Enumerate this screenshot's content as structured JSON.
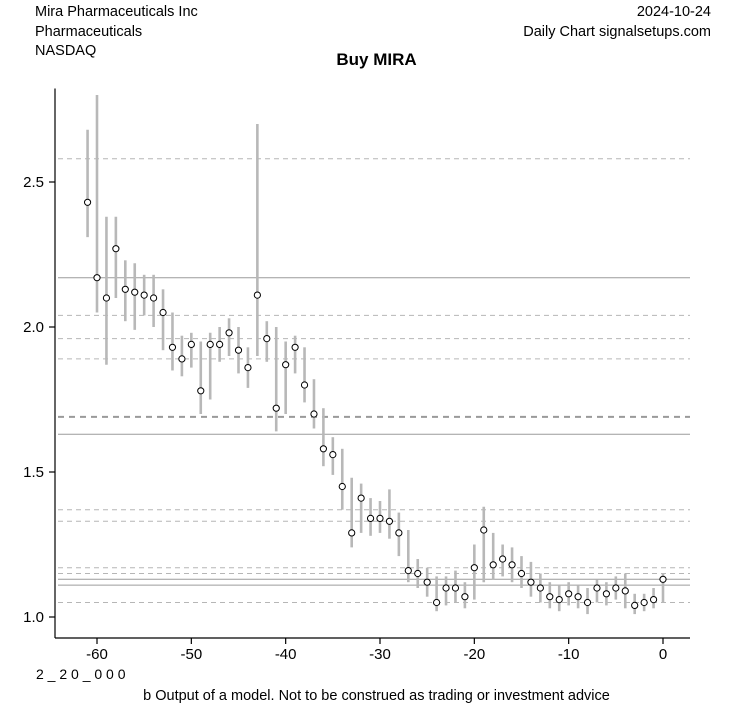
{
  "header": {
    "company": "Mira Pharmaceuticals Inc",
    "sector": "Pharmaceuticals",
    "exchange": "NASDAQ",
    "date": "2024-10-24",
    "source": "Daily Chart signalsetups.com"
  },
  "title": "Buy MIRA",
  "footer": {
    "code": "2 _ 2 0 _ 0 0 0",
    "disclaimer": "b Output of a model. Not to be construed as trading or investment advice"
  },
  "chart_data": {
    "type": "scatter",
    "title": "Buy MIRA",
    "xlabel": "",
    "ylabel": "",
    "xlim": [
      -62,
      1
    ],
    "ylim": [
      0.97,
      2.85
    ],
    "x_ticks": [
      -60,
      -50,
      -40,
      -30,
      -20,
      -10,
      0
    ],
    "y_ticks": [
      1.0,
      1.5,
      2.0,
      2.5
    ],
    "grid": false,
    "legend": "none",
    "colors": {
      "range_bar": "#b8b8b8",
      "dashed_line": "#b6b6b6",
      "dashed_bold_line": "#9a9a9a",
      "solid_line": "#9c9c9c",
      "marker_fill": "#ffffff",
      "marker_stroke": "#000000",
      "axis": "#000000"
    },
    "levels": {
      "solid": [
        2.17,
        1.63,
        1.13,
        1.11
      ],
      "dashed": [
        2.58,
        2.04,
        1.96,
        1.89,
        1.37,
        1.33,
        1.17,
        1.15,
        1.05
      ],
      "dashed_bold": [
        1.69
      ]
    },
    "points": [
      {
        "x": -61,
        "low": 2.31,
        "close": 2.43,
        "high": 2.68
      },
      {
        "x": -60,
        "low": 2.05,
        "close": 2.17,
        "high": 2.8
      },
      {
        "x": -59,
        "low": 1.87,
        "close": 2.1,
        "high": 2.38
      },
      {
        "x": -58,
        "low": 2.1,
        "close": 2.27,
        "high": 2.38
      },
      {
        "x": -57,
        "low": 2.02,
        "close": 2.13,
        "high": 2.23
      },
      {
        "x": -56,
        "low": 1.99,
        "close": 2.12,
        "high": 2.22
      },
      {
        "x": -55,
        "low": 2.04,
        "close": 2.11,
        "high": 2.18
      },
      {
        "x": -54,
        "low": 2.0,
        "close": 2.1,
        "high": 2.18
      },
      {
        "x": -53,
        "low": 1.92,
        "close": 2.05,
        "high": 2.13
      },
      {
        "x": -52,
        "low": 1.85,
        "close": 1.93,
        "high": 2.05
      },
      {
        "x": -51,
        "low": 1.83,
        "close": 1.89,
        "high": 1.97
      },
      {
        "x": -50,
        "low": 1.86,
        "close": 1.94,
        "high": 1.98
      },
      {
        "x": -49,
        "low": 1.7,
        "close": 1.78,
        "high": 1.95
      },
      {
        "x": -48,
        "low": 1.75,
        "close": 1.94,
        "high": 1.98
      },
      {
        "x": -47,
        "low": 1.88,
        "close": 1.94,
        "high": 2.0
      },
      {
        "x": -46,
        "low": 1.9,
        "close": 1.98,
        "high": 2.03
      },
      {
        "x": -45,
        "low": 1.84,
        "close": 1.92,
        "high": 2.0
      },
      {
        "x": -44,
        "low": 1.79,
        "close": 1.86,
        "high": 1.93
      },
      {
        "x": -43,
        "low": 1.9,
        "close": 2.11,
        "high": 2.7
      },
      {
        "x": -42,
        "low": 1.88,
        "close": 1.96,
        "high": 2.02
      },
      {
        "x": -41,
        "low": 1.64,
        "close": 1.72,
        "high": 2.0
      },
      {
        "x": -40,
        "low": 1.7,
        "close": 1.87,
        "high": 1.95
      },
      {
        "x": -39,
        "low": 1.84,
        "close": 1.93,
        "high": 1.97
      },
      {
        "x": -38,
        "low": 1.74,
        "close": 1.8,
        "high": 1.93
      },
      {
        "x": -37,
        "low": 1.65,
        "close": 1.7,
        "high": 1.82
      },
      {
        "x": -36,
        "low": 1.52,
        "close": 1.58,
        "high": 1.72
      },
      {
        "x": -35,
        "low": 1.49,
        "close": 1.56,
        "high": 1.62
      },
      {
        "x": -34,
        "low": 1.37,
        "close": 1.45,
        "high": 1.58
      },
      {
        "x": -33,
        "low": 1.24,
        "close": 1.29,
        "high": 1.48
      },
      {
        "x": -32,
        "low": 1.29,
        "close": 1.41,
        "high": 1.46
      },
      {
        "x": -31,
        "low": 1.28,
        "close": 1.34,
        "high": 1.41
      },
      {
        "x": -30,
        "low": 1.29,
        "close": 1.34,
        "high": 1.4
      },
      {
        "x": -29,
        "low": 1.27,
        "close": 1.33,
        "high": 1.44
      },
      {
        "x": -28,
        "low": 1.21,
        "close": 1.29,
        "high": 1.36
      },
      {
        "x": -27,
        "low": 1.12,
        "close": 1.16,
        "high": 1.3
      },
      {
        "x": -26,
        "low": 1.1,
        "close": 1.15,
        "high": 1.2
      },
      {
        "x": -25,
        "low": 1.07,
        "close": 1.12,
        "high": 1.17
      },
      {
        "x": -24,
        "low": 1.02,
        "close": 1.05,
        "high": 1.14
      },
      {
        "x": -23,
        "low": 1.04,
        "close": 1.1,
        "high": 1.14
      },
      {
        "x": -22,
        "low": 1.05,
        "close": 1.1,
        "high": 1.16
      },
      {
        "x": -21,
        "low": 1.03,
        "close": 1.07,
        "high": 1.12
      },
      {
        "x": -20,
        "low": 1.06,
        "close": 1.17,
        "high": 1.25
      },
      {
        "x": -19,
        "low": 1.12,
        "close": 1.3,
        "high": 1.38
      },
      {
        "x": -18,
        "low": 1.13,
        "close": 1.18,
        "high": 1.29
      },
      {
        "x": -17,
        "low": 1.14,
        "close": 1.2,
        "high": 1.25
      },
      {
        "x": -16,
        "low": 1.12,
        "close": 1.18,
        "high": 1.24
      },
      {
        "x": -15,
        "low": 1.1,
        "close": 1.15,
        "high": 1.21
      },
      {
        "x": -14,
        "low": 1.07,
        "close": 1.12,
        "high": 1.19
      },
      {
        "x": -13,
        "low": 1.05,
        "close": 1.1,
        "high": 1.15
      },
      {
        "x": -12,
        "low": 1.03,
        "close": 1.07,
        "high": 1.12
      },
      {
        "x": -11,
        "low": 1.02,
        "close": 1.06,
        "high": 1.11
      },
      {
        "x": -10,
        "low": 1.04,
        "close": 1.08,
        "high": 1.12
      },
      {
        "x": -9,
        "low": 1.03,
        "close": 1.07,
        "high": 1.11
      },
      {
        "x": -8,
        "low": 1.01,
        "close": 1.05,
        "high": 1.1
      },
      {
        "x": -7,
        "low": 1.05,
        "close": 1.1,
        "high": 1.13
      },
      {
        "x": -6,
        "low": 1.04,
        "close": 1.08,
        "high": 1.12
      },
      {
        "x": -5,
        "low": 1.06,
        "close": 1.1,
        "high": 1.14
      },
      {
        "x": -4,
        "low": 1.03,
        "close": 1.09,
        "high": 1.15
      },
      {
        "x": -3,
        "low": 1.01,
        "close": 1.04,
        "high": 1.08
      },
      {
        "x": -2,
        "low": 1.02,
        "close": 1.05,
        "high": 1.08
      },
      {
        "x": -1,
        "low": 1.03,
        "close": 1.06,
        "high": 1.1
      },
      {
        "x": 0,
        "low": 1.05,
        "close": 1.13,
        "high": 1.15
      }
    ]
  }
}
